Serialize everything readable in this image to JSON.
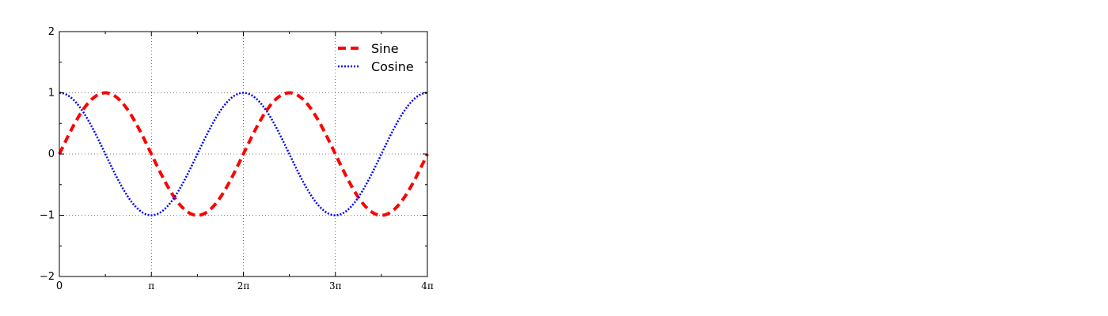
{
  "chart_data": {
    "type": "line",
    "title": "",
    "xlabel": "",
    "ylabel": "",
    "xlim": [
      0,
      12.566370614359172
    ],
    "ylim": [
      -2,
      2
    ],
    "grid": true,
    "legend_position": "top-right",
    "x_ticks": [
      {
        "value": 0,
        "label": "0"
      },
      {
        "value": 3.141592653589793,
        "label": "π"
      },
      {
        "value": 6.283185307179586,
        "label": "2π"
      },
      {
        "value": 9.42477796076938,
        "label": "3π"
      },
      {
        "value": 12.566370614359172,
        "label": "4π"
      }
    ],
    "y_ticks": [
      {
        "value": -2,
        "label": "−2"
      },
      {
        "value": -1,
        "label": "−1"
      },
      {
        "value": 0,
        "label": "0"
      },
      {
        "value": 1,
        "label": "1"
      },
      {
        "value": 2,
        "label": "2"
      }
    ],
    "series": [
      {
        "name": "Sine",
        "function": "sin",
        "color": "#ff0000",
        "line_style": "dashed"
      },
      {
        "name": "Cosine",
        "function": "cos",
        "color": "#0000ff",
        "line_style": "dotted"
      }
    ]
  }
}
